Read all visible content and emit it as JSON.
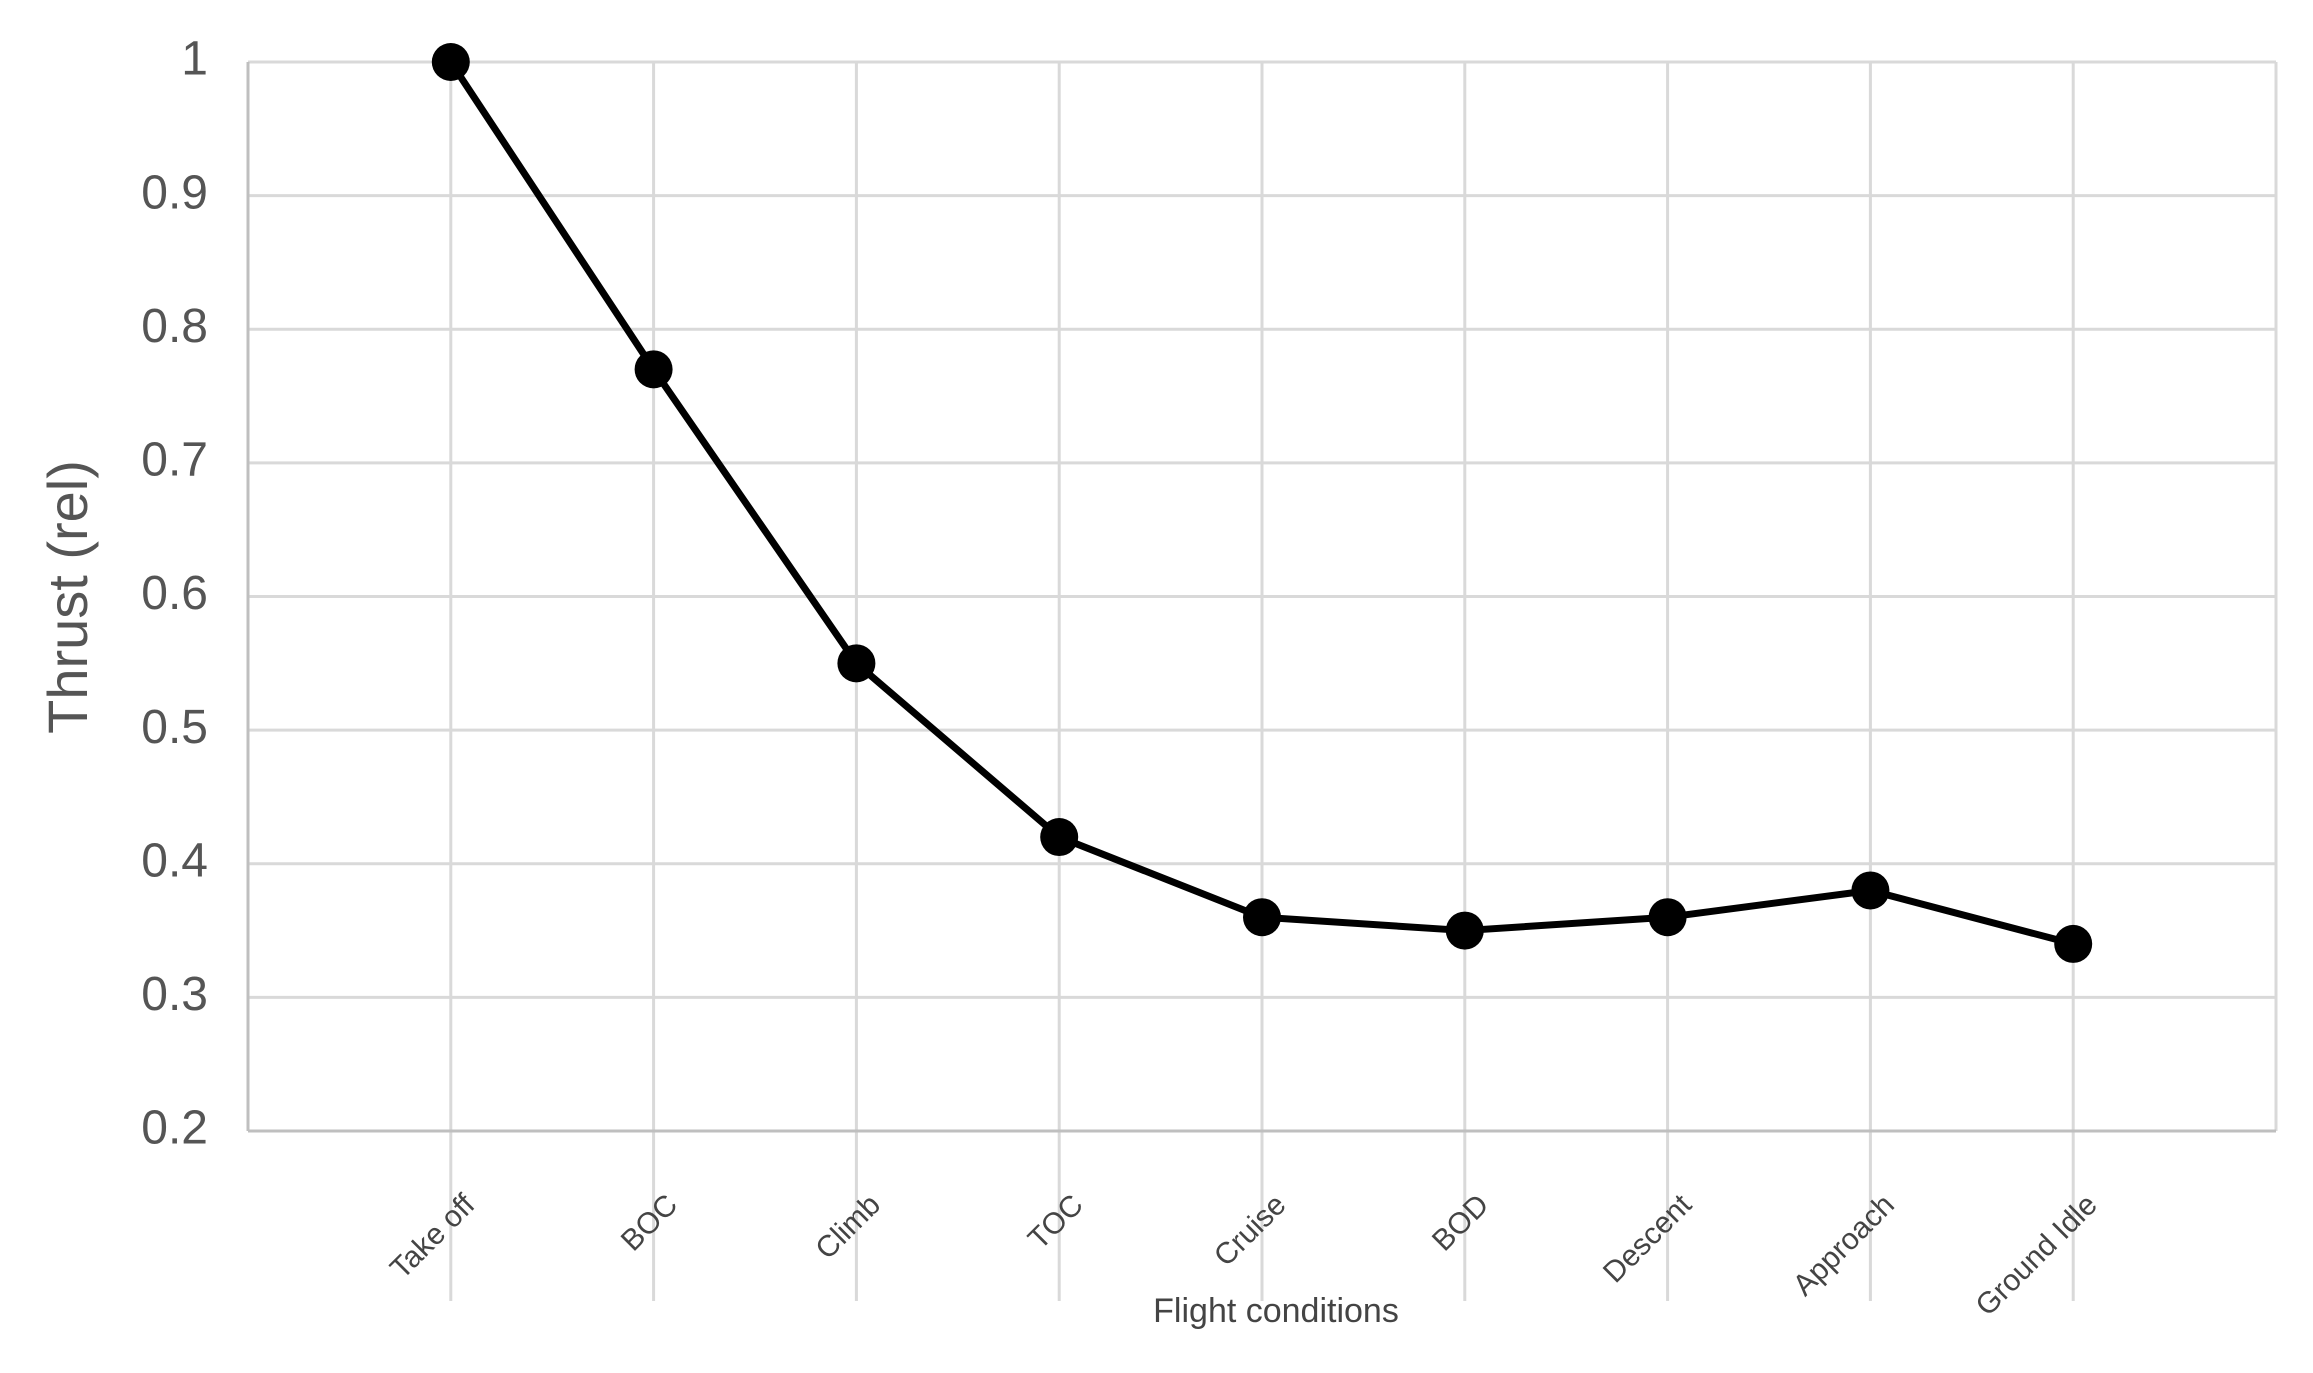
{
  "chart_data": {
    "type": "line",
    "y_label": "Thrust (rel)",
    "x_label": "Flight conditions",
    "categories": [
      "Take off",
      "BOC",
      "Climb",
      "TOC",
      "Cruise",
      "BOD",
      "Descent",
      "Approach",
      "Ground Idle"
    ],
    "series": [
      {
        "color": "#000000",
        "values": [
          1,
          0.77,
          0.55,
          0.42,
          0.36,
          0.35,
          0.36,
          0.38,
          0.34
        ]
      }
    ],
    "ylim": [
      0.2,
      1
    ],
    "yticks": [
      0.2,
      0.3,
      0.4,
      0.5,
      0.6,
      0.7,
      0.8,
      0.9,
      1
    ],
    "grid": true
  }
}
